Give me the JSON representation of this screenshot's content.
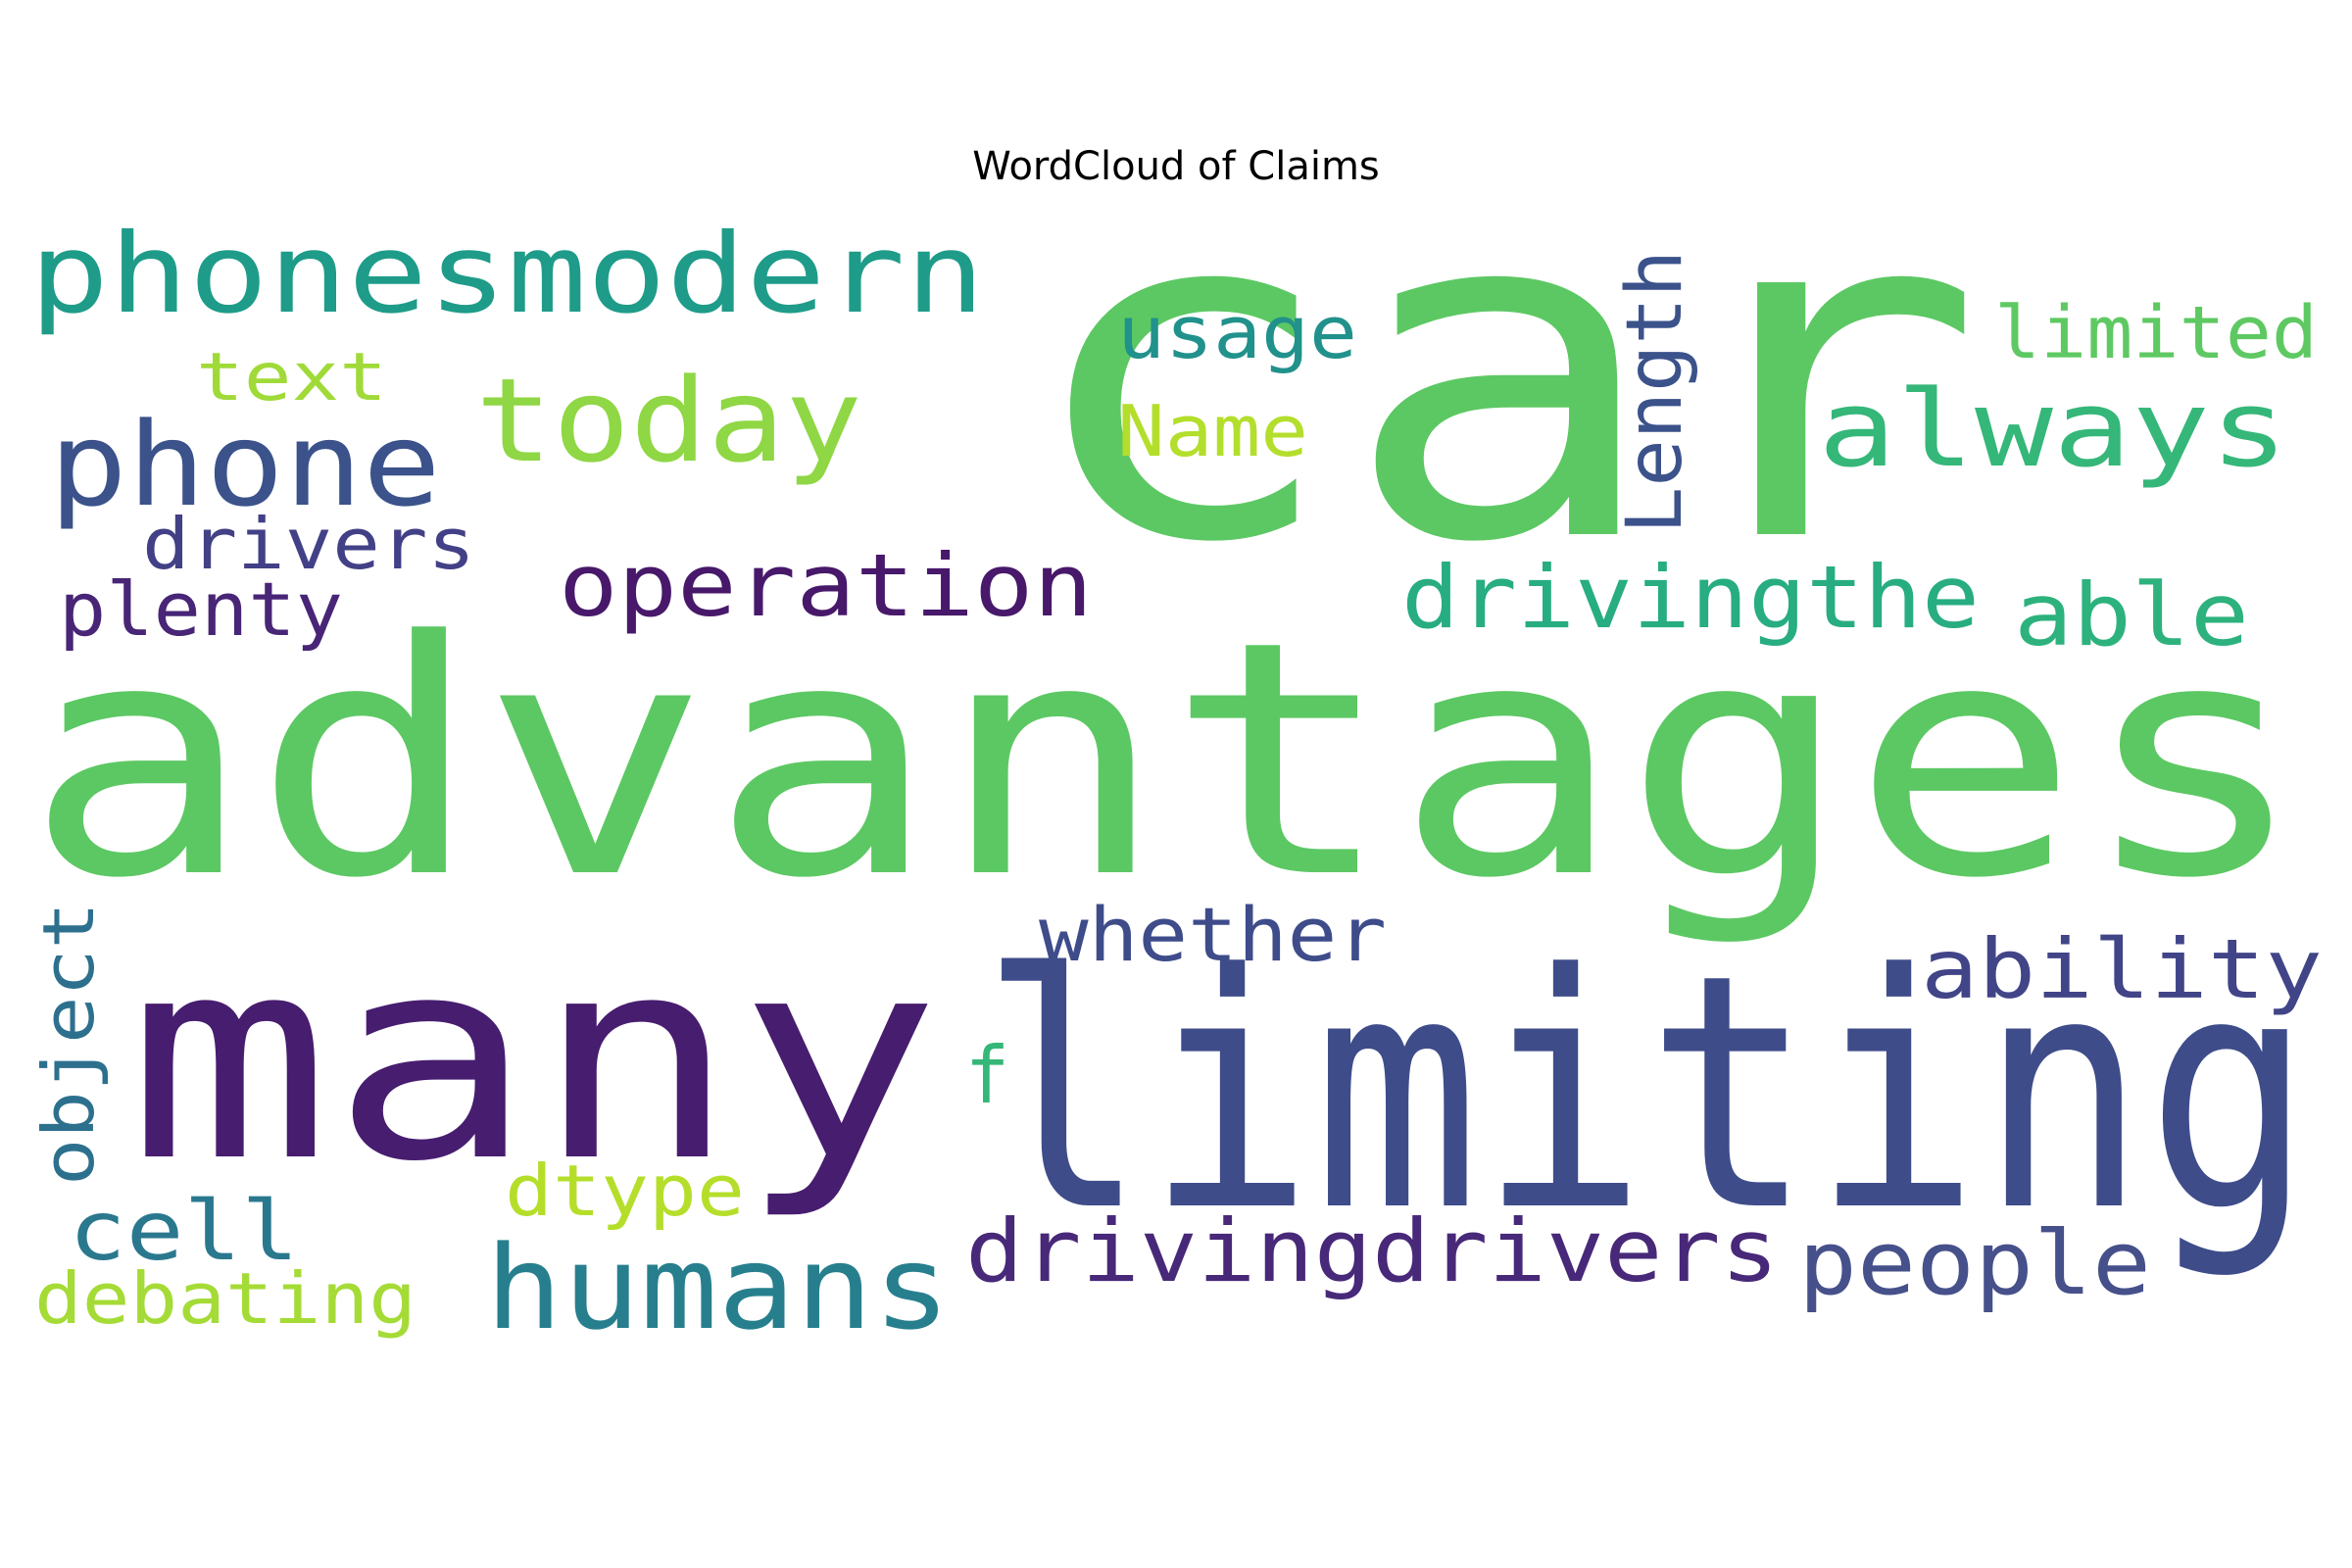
{
  "chart_data": {
    "type": "wordcloud",
    "title": "WordCloud of Claims",
    "words": [
      {
        "text": "car",
        "color": "#5cc863"
      },
      {
        "text": "advantages",
        "color": "#5cc863"
      },
      {
        "text": "limiting",
        "color": "#3e4c8a"
      },
      {
        "text": "many",
        "color": "#471d6f"
      },
      {
        "text": "phonesmodern",
        "color": "#1e9c89"
      },
      {
        "text": "humans",
        "color": "#277f8e"
      },
      {
        "text": "today",
        "color": "#8fd744"
      },
      {
        "text": "phone",
        "color": "#3b528b"
      },
      {
        "text": "always",
        "color": "#35b779"
      },
      {
        "text": "operation",
        "color": "#48186a"
      },
      {
        "text": "drivingthe",
        "color": "#27ad81"
      },
      {
        "text": "drivingdrivers",
        "color": "#482878"
      },
      {
        "text": "people",
        "color": "#46508a"
      },
      {
        "text": "able",
        "color": "#2db27d"
      },
      {
        "text": "ability",
        "color": "#414487"
      },
      {
        "text": "whether",
        "color": "#3e4c8a"
      },
      {
        "text": "usage",
        "color": "#21918c"
      },
      {
        "text": "limited",
        "color": "#5ec962"
      },
      {
        "text": "Length",
        "color": "#3b528b"
      },
      {
        "text": "Name",
        "color": "#b4de2c"
      },
      {
        "text": "text",
        "color": "#a0da39"
      },
      {
        "text": "drivers",
        "color": "#424086"
      },
      {
        "text": "plenty",
        "color": "#482576"
      },
      {
        "text": "cell",
        "color": "#2a788e"
      },
      {
        "text": "debating",
        "color": "#a5db36"
      },
      {
        "text": "dtype",
        "color": "#b5de2b"
      },
      {
        "text": "object",
        "color": "#2d708e"
      },
      {
        "text": "f",
        "color": "#35b779"
      }
    ]
  }
}
